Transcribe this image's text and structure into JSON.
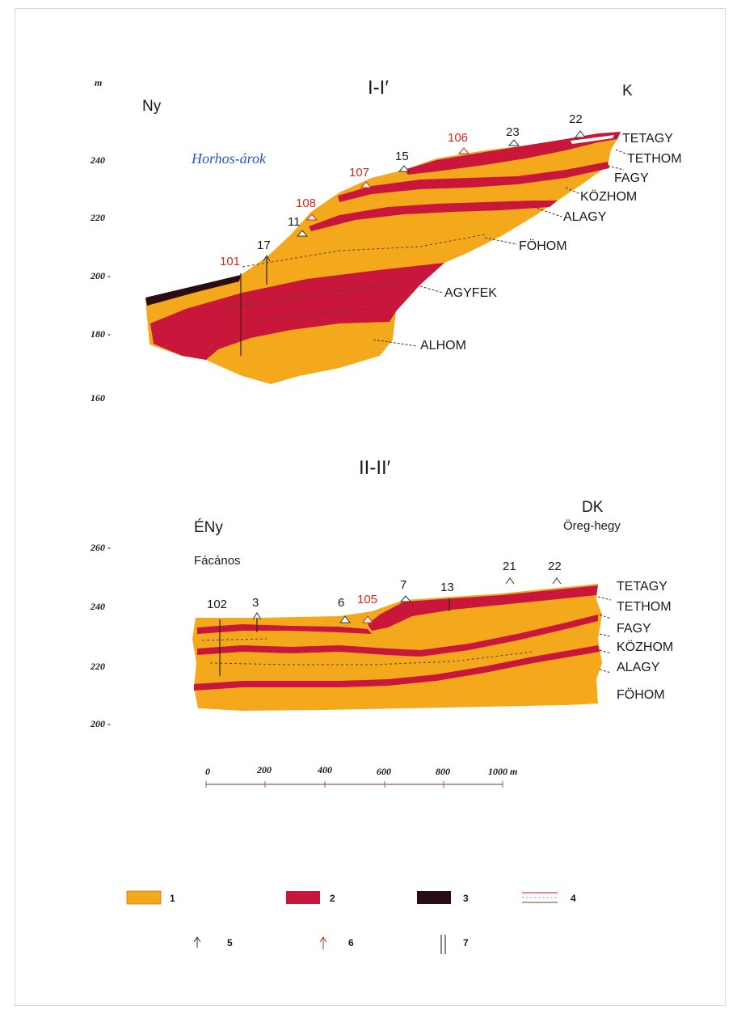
{
  "colors": {
    "orange": "#f4a81c",
    "red": "#c8173a",
    "black": "#2a0d12",
    "blue": "#2a55b8",
    "red_text": "#d22a1e"
  },
  "section1": {
    "title": "I-I′",
    "unit": "m",
    "west": "Ny",
    "east": "K",
    "place": "Horhos-árok",
    "elevations": [
      "240",
      "220",
      "200 -",
      "180 -",
      "160"
    ],
    "wells": [
      {
        "label": "22",
        "red": false
      },
      {
        "label": "23",
        "red": false
      },
      {
        "label": "106",
        "red": true
      },
      {
        "label": "15",
        "red": false
      },
      {
        "label": "107",
        "red": true
      },
      {
        "label": "108",
        "red": true
      },
      {
        "label": "11",
        "red": false
      },
      {
        "label": "17",
        "red": false
      },
      {
        "label": "101",
        "red": true
      }
    ],
    "layers": [
      "TETAGY",
      "TETHOM",
      "FAGY",
      "KÖZHOM",
      "ALAGY",
      "FÖHOM",
      "AGYFEK",
      "ALHOM"
    ]
  },
  "section2": {
    "title": "II-II′",
    "west": "ÉNy",
    "east": "DK",
    "place_west": "Fácános",
    "place_east": "Öreg-hegy",
    "elevations": [
      "260 -",
      "240",
      "220",
      "200 -"
    ],
    "wells": [
      {
        "label": "102",
        "red": false
      },
      {
        "label": "3",
        "red": false
      },
      {
        "label": "6",
        "red": false
      },
      {
        "label": "105",
        "red": true
      },
      {
        "label": "7",
        "red": false
      },
      {
        "label": "13",
        "red": false
      },
      {
        "label": "21",
        "red": false
      },
      {
        "label": "22",
        "red": false
      }
    ],
    "layers": [
      "TETAGY",
      "TETHOM",
      "FAGY",
      "KÖZHOM",
      "ALAGY",
      "FÖHOM"
    ]
  },
  "scale_bar": {
    "ticks": [
      "0",
      "200",
      "400",
      "600",
      "800",
      "1000 m"
    ]
  },
  "legend": {
    "items": [
      {
        "num": "1",
        "kind": "orange-fill"
      },
      {
        "num": "2",
        "kind": "red-fill"
      },
      {
        "num": "3",
        "kind": "black-fill"
      },
      {
        "num": "4",
        "kind": "boundary-lines"
      },
      {
        "num": "5",
        "kind": "well-arrow-black"
      },
      {
        "num": "6",
        "kind": "well-arrow-red"
      },
      {
        "num": "7",
        "kind": "borehole-lines"
      }
    ]
  }
}
